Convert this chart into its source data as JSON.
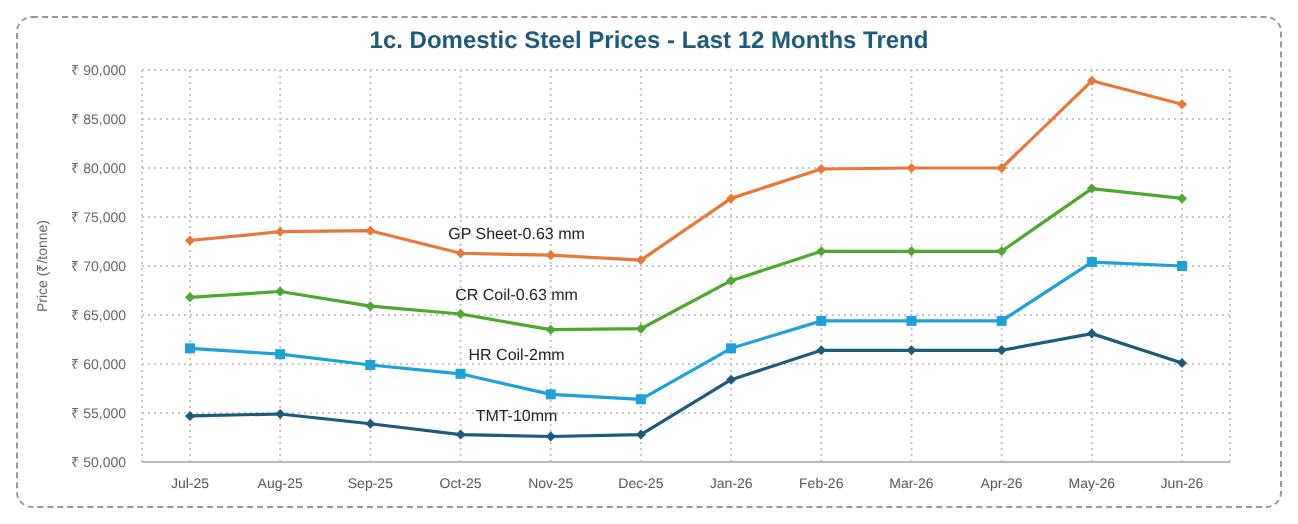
{
  "chart_data": {
    "type": "line",
    "title": "1c. Domestic Steel Prices - Last 12 Months Trend",
    "ylabel": "Price (₹/tonne)",
    "categories": [
      "Jul-25",
      "Aug-25",
      "Sep-25",
      "Oct-25",
      "Nov-25",
      "Dec-25",
      "Jan-26",
      "Feb-26",
      "Mar-26",
      "Apr-26",
      "May-26",
      "Jun-26"
    ],
    "series": [
      {
        "name": "GP Sheet-0.63 mm",
        "color": "#e8773a",
        "marker": "diamond",
        "values": [
          72600,
          73500,
          73600,
          71300,
          71100,
          70600,
          76900,
          79900,
          80000,
          80000,
          88900,
          86500
        ]
      },
      {
        "name": "CR Coil-0.63 mm",
        "color": "#4ea72e",
        "marker": "diamond",
        "values": [
          66800,
          67400,
          65900,
          65100,
          63500,
          63600,
          68500,
          71500,
          71500,
          71500,
          77900,
          76900
        ]
      },
      {
        "name": "HR Coil-2mm",
        "color": "#1ea0d8",
        "marker": "square",
        "values": [
          61600,
          61000,
          59900,
          59000,
          56900,
          56400,
          61600,
          64400,
          64400,
          64400,
          70400,
          70000
        ]
      },
      {
        "name": "TMT-10mm",
        "color": "#1f5a7a",
        "marker": "diamond",
        "values": [
          54700,
          54900,
          53900,
          52800,
          52600,
          52800,
          58400,
          61400,
          61400,
          61400,
          63100,
          60100
        ]
      }
    ],
    "ylim": [
      50000,
      90000
    ],
    "yticks": [
      {
        "value": 50000,
        "label": "₹ 50,000"
      },
      {
        "value": 55000,
        "label": "₹ 55,000"
      },
      {
        "value": 60000,
        "label": "₹ 60,000"
      },
      {
        "value": 65000,
        "label": "₹ 65,000"
      },
      {
        "value": 70000,
        "label": "₹ 70,000"
      },
      {
        "value": 75000,
        "label": "₹ 75,000"
      },
      {
        "value": 80000,
        "label": "₹ 80,000"
      },
      {
        "value": 85000,
        "label": "₹ 85,000"
      },
      {
        "value": 90000,
        "label": "₹ 90,000"
      }
    ],
    "grid": true,
    "legend": false,
    "line_style": "solid"
  }
}
